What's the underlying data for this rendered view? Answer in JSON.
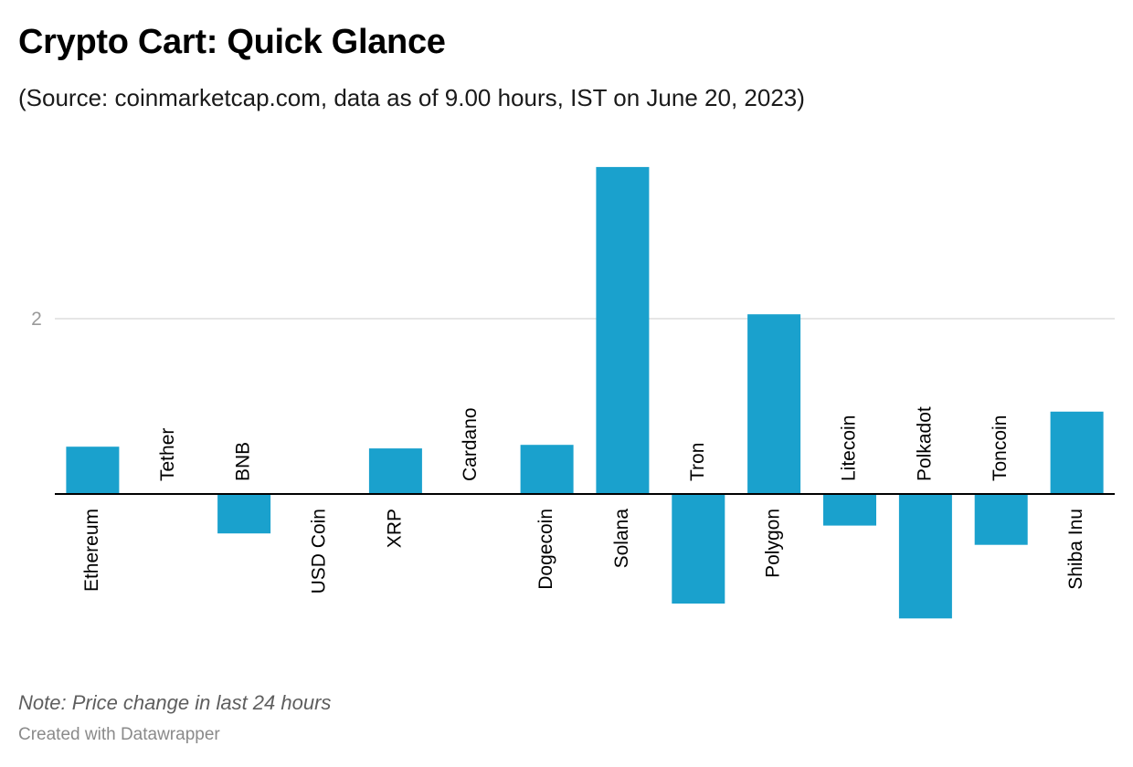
{
  "header": {
    "title": "Crypto Cart: Quick Glance",
    "subtitle": "(Source: coinmarketcap.com, data as of 9.00 hours, IST on June 20, 2023)"
  },
  "footer": {
    "note": "Note: Price change in last 24 hours",
    "credit": "Created with Datawrapper"
  },
  "colors": {
    "bar": "#1aa1cd",
    "baseline": "#000000",
    "grid": "#dddddd",
    "tick_label": "#9a9a9a",
    "category_label": "#000000"
  },
  "chart_data": {
    "type": "bar",
    "categories": [
      "Ethereum",
      "Tether",
      "BNB",
      "USD Coin",
      "XRP",
      "Cardano",
      "Dogecoin",
      "Solana",
      "Tron",
      "Polygon",
      "Litecoin",
      "Polkadot",
      "Toncoin",
      "Shiba Inu"
    ],
    "values": [
      0.54,
      0.0,
      -0.45,
      0.0,
      0.52,
      0.0,
      0.56,
      3.73,
      -1.25,
      2.05,
      -0.36,
      -1.42,
      -0.58,
      0.94
    ],
    "ylim": [
      -1.6,
      3.9
    ],
    "yticks": [
      2
    ],
    "ytick_labels": [
      "2"
    ],
    "grid": true,
    "title": "Crypto Cart: Quick Glance",
    "xlabel": "",
    "ylabel": ""
  }
}
